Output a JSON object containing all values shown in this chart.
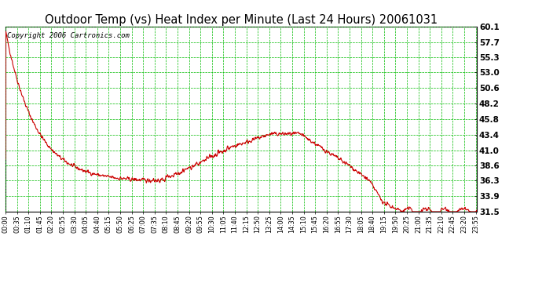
{
  "title": "Outdoor Temp (vs) Heat Index per Minute (Last 24 Hours) 20061031",
  "copyright": "Copyright 2006 Cartronics.com",
  "yticks": [
    31.5,
    33.9,
    36.3,
    38.6,
    41.0,
    43.4,
    45.8,
    48.2,
    50.6,
    53.0,
    55.3,
    57.7,
    60.1
  ],
  "ymin": 31.5,
  "ymax": 60.1,
  "line_color": "#cc0000",
  "bg_color": "#ffffff",
  "plot_bg_color": "#ffffff",
  "grid_color": "#00bb00",
  "border_color": "#000000",
  "title_fontsize": 10.5,
  "copyright_fontsize": 6.5,
  "xtick_step": 35,
  "n_minutes": 1440
}
